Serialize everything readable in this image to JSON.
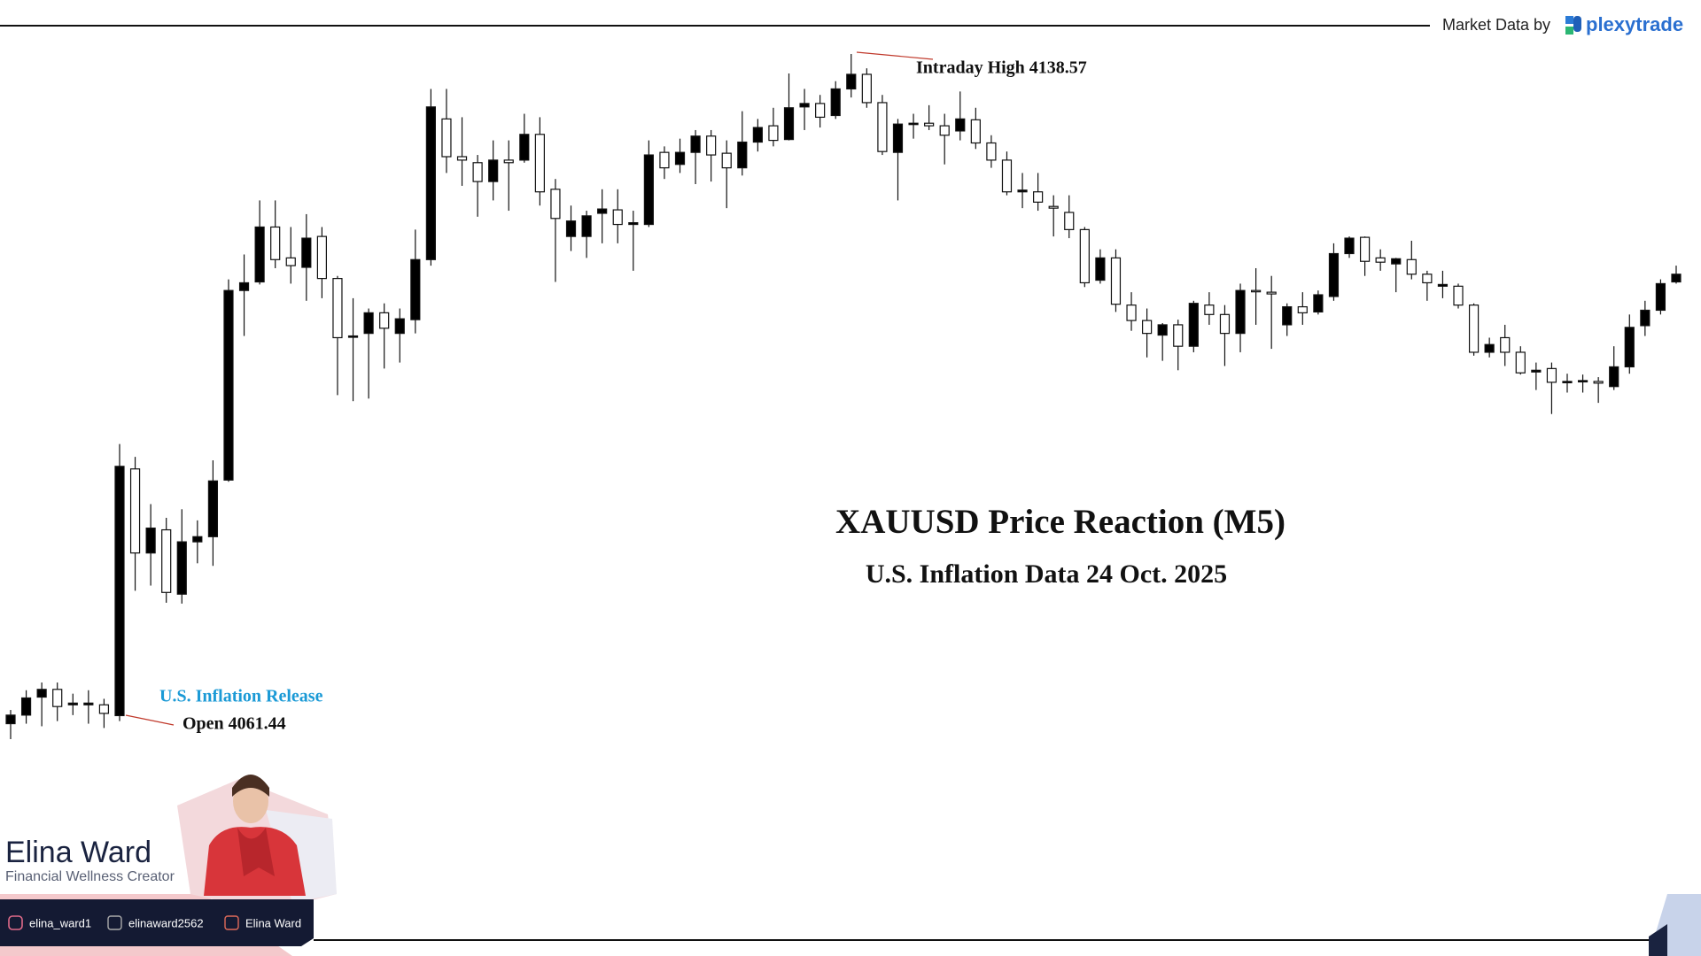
{
  "header": {
    "market_data_label": "Market Data by",
    "brand": "plexytrade"
  },
  "chart_data": {
    "type": "candlestick",
    "title": "XAUUSD Price Reaction (M5)",
    "subtitle": "U.S. Inflation Data 24 Oct. 2025",
    "annotations": {
      "high": "Intraday High 4138.57",
      "release": "U.S. Inflation Release",
      "open": "Open 4061.44"
    },
    "up_color": "#000000",
    "down_color": "#ffffff",
    "open": [
      4060.5,
      4061.5,
      4063.6,
      4064.5,
      4062.7,
      4062.7,
      4062.7,
      4061.44,
      4090.2,
      4080.4,
      4083.1,
      4075.6,
      4081.7,
      4082.3,
      4088.9,
      4111.0,
      4112.0,
      4118.4,
      4114.8,
      4113.7,
      4117.3,
      4112.4,
      4105.6,
      4106.0,
      4108.4,
      4106.0,
      4107.6,
      4114.6,
      4131.0,
      4126.6,
      4125.9,
      4123.7,
      4126.2,
      4126.2,
      4129.2,
      4122.8,
      4117.3,
      4117.3,
      4120.0,
      4120.4,
      4118.7,
      4118.7,
      4127.1,
      4125.7,
      4127.1,
      4129.0,
      4127.0,
      4125.3,
      4128.3,
      4130.2,
      4128.6,
      4132.4,
      4132.8,
      4131.4,
      4134.5,
      4136.2,
      4132.9,
      4127.1,
      4130.4,
      4130.5,
      4130.2,
      4129.6,
      4130.9,
      4128.2,
      4126.2,
      4122.5,
      4122.5,
      4120.8,
      4120.1,
      4118.1,
      4112.2,
      4114.8,
      4109.3,
      4107.5,
      4105.8,
      4107.0,
      4104.5,
      4109.3,
      4108.2,
      4106.0,
      4111.0,
      4110.8,
      4107.0,
      4109.1,
      4108.5,
      4110.3,
      4115.3,
      4117.2,
      4114.8,
      4114.1,
      4114.6,
      4112.9,
      4111.5,
      4111.5,
      4109.3,
      4103.8,
      4105.5,
      4103.8,
      4101.5,
      4101.9,
      4100.3,
      4100.4,
      4100.4,
      4099.8,
      4102.1,
      4106.9,
      4108.7,
      4112.0
    ],
    "high": [
      4062.1,
      4064.4,
      4065.3,
      4065.3,
      4064.0,
      4064.4,
      4063.4,
      4093.1,
      4091.6,
      4086.1,
      4084.5,
      4085.5,
      4084.2,
      4091.2,
      4112.3,
      4115.2,
      4121.5,
      4121.5,
      4118.4,
      4119.9,
      4118.4,
      4112.7,
      4110.1,
      4108.9,
      4109.5,
      4108.9,
      4118.1,
      4134.5,
      4134.5,
      4131.2,
      4126.8,
      4128.5,
      4128.5,
      4131.6,
      4131.2,
      4124.0,
      4120.9,
      4120.3,
      4122.8,
      4122.8,
      4120.3,
      4128.5,
      4127.8,
      4128.7,
      4129.7,
      4129.7,
      4128.5,
      4131.9,
      4131.0,
      4132.3,
      4136.3,
      4134.5,
      4133.8,
      4135.4,
      4138.57,
      4136.9,
      4133.8,
      4131.0,
      4131.6,
      4132.6,
      4131.6,
      4134.2,
      4132.3,
      4129.1,
      4127.2,
      4124.7,
      4124.7,
      4122.1,
      4122.1,
      4118.4,
      4115.8,
      4115.8,
      4110.8,
      4108.9,
      4107.2,
      4107.6,
      4109.8,
      4110.8,
      4109.3,
      4111.8,
      4113.6,
      4112.7,
      4109.5,
      4110.8,
      4111.0,
      4116.5,
      4117.3,
      4117.3,
      4115.8,
      4114.8,
      4116.8,
      4113.3,
      4113.3,
      4111.8,
      4109.5,
      4105.5,
      4107.0,
      4104.5,
      4102.6,
      4102.6,
      4101.3,
      4101.2,
      4100.9,
      4104.5,
      4108.2,
      4109.8,
      4112.3,
      4113.9
    ],
    "low": [
      4058.7,
      4060.5,
      4060.2,
      4060.8,
      4061.5,
      4060.5,
      4060.0,
      4060.8,
      4076.0,
      4076.6,
      4074.6,
      4074.5,
      4079.2,
      4078.9,
      4088.7,
      4105.7,
      4111.7,
      4113.6,
      4111.8,
      4109.8,
      4110.1,
      4098.8,
      4098.1,
      4098.4,
      4101.9,
      4102.6,
      4106.0,
      4113.9,
      4124.7,
      4123.2,
      4119.6,
      4121.5,
      4120.3,
      4125.9,
      4120.9,
      4112.0,
      4115.6,
      4114.8,
      4116.5,
      4116.5,
      4113.3,
      4118.4,
      4124.0,
      4124.7,
      4123.4,
      4123.7,
      4120.6,
      4124.4,
      4127.2,
      4127.8,
      4128.5,
      4129.7,
      4130.0,
      4131.0,
      4133.5,
      4132.3,
      4126.8,
      4121.5,
      4128.7,
      4129.7,
      4125.7,
      4128.5,
      4127.5,
      4125.3,
      4122.1,
      4120.6,
      4120.3,
      4117.3,
      4117.1,
      4111.4,
      4111.8,
      4108.5,
      4106.3,
      4103.2,
      4102.8,
      4101.7,
      4103.8,
      4107.0,
      4102.2,
      4103.8,
      4107.0,
      4104.2,
      4105.7,
      4107.0,
      4108.2,
      4109.8,
      4114.8,
      4112.7,
      4113.3,
      4110.8,
      4112.3,
      4109.8,
      4110.1,
      4108.9,
      4103.4,
      4103.2,
      4102.2,
      4101.2,
      4099.4,
      4096.6,
      4099.1,
      4099.1,
      4097.9,
      4099.4,
      4101.3,
      4105.7,
      4108.2,
      4111.8
    ],
    "close": [
      4061.5,
      4063.5,
      4064.5,
      4062.5,
      4062.9,
      4062.9,
      4061.7,
      4090.5,
      4080.4,
      4083.3,
      4075.8,
      4081.7,
      4082.3,
      4088.8,
      4111.0,
      4111.9,
      4118.4,
      4114.6,
      4113.9,
      4117.1,
      4112.4,
      4105.5,
      4105.7,
      4108.4,
      4106.6,
      4107.7,
      4114.6,
      4132.4,
      4126.6,
      4126.2,
      4123.7,
      4126.2,
      4125.9,
      4129.2,
      4122.5,
      4119.4,
      4119.1,
      4119.7,
      4120.5,
      4118.7,
      4118.9,
      4126.8,
      4125.3,
      4127.1,
      4129.0,
      4126.8,
      4125.3,
      4128.3,
      4130.0,
      4128.5,
      4132.3,
      4132.8,
      4131.2,
      4134.5,
      4136.2,
      4132.9,
      4127.2,
      4130.4,
      4130.5,
      4130.2,
      4129.1,
      4131.0,
      4128.2,
      4126.2,
      4122.5,
      4122.7,
      4121.3,
      4120.6,
      4118.1,
      4111.9,
      4114.8,
      4109.4,
      4107.5,
      4106.0,
      4107.0,
      4104.5,
      4109.5,
      4108.2,
      4106.0,
      4111.0,
      4110.9,
      4110.6,
      4109.1,
      4108.4,
      4110.5,
      4115.3,
      4117.1,
      4114.4,
      4114.3,
      4114.7,
      4112.9,
      4111.9,
      4111.7,
      4109.3,
      4103.8,
      4104.7,
      4103.8,
      4101.4,
      4101.7,
      4100.3,
      4100.4,
      4100.5,
      4100.2,
      4102.1,
      4106.7,
      4108.7,
      4111.8,
      4112.9
    ]
  },
  "creator": {
    "name": "Elina Ward",
    "tagline": "Financial Wellness Creator",
    "socials": {
      "instagram": "elina_ward1",
      "x": "elinaward2562",
      "facebook": "Elina Ward"
    }
  }
}
